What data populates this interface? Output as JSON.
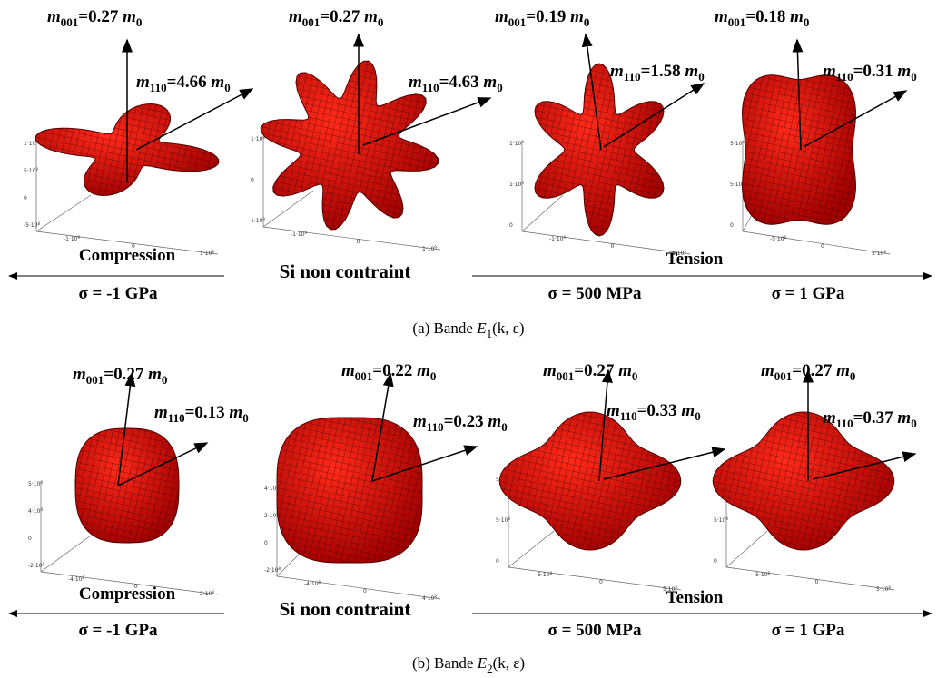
{
  "figure": {
    "rows": [
      {
        "panels": [
          {
            "m001": [
              "m",
              "001",
              "=0.27 ",
              "m",
              "0"
            ],
            "m110": [
              "m",
              "110",
              "=4.66 ",
              "m",
              "0"
            ],
            "axis_labels": [
              [
                "1·10",
                "9"
              ],
              [
                "5·10",
                "8"
              ],
              [
                "0",
                ""
              ],
              [
                "-5·10",
                "8"
              ],
              [
                "-1·10",
                "9"
              ],
              [
                "0",
                ""
              ],
              [
                "1·10",
                "9"
              ]
            ]
          },
          {
            "m001": [
              "m",
              "001",
              "=0.27 ",
              "m",
              "0"
            ],
            "m110": [
              "m",
              "110",
              "=4.63 ",
              "m",
              "0"
            ],
            "axis_labels": [
              [
                "1·10",
                "9"
              ],
              [
                "0",
                ""
              ],
              [
                "1·10",
                "9"
              ],
              [
                "-1·10",
                "9"
              ],
              [
                "0",
                ""
              ],
              [
                "1·10",
                "9"
              ]
            ]
          },
          {
            "m001": [
              "m",
              "001",
              "=0.19 ",
              "m",
              "0"
            ],
            "m110": [
              "m",
              "110",
              "=1.58 ",
              "m",
              "0"
            ],
            "axis_labels": [
              [
                "1·10",
                "9"
              ],
              [
                "1·10",
                "9"
              ],
              [
                "0",
                ""
              ],
              [
                "-1·10",
                "9"
              ],
              [
                "0",
                ""
              ],
              [
                "1·10",
                "9"
              ]
            ]
          },
          {
            "m001": [
              "m",
              "001",
              "=0.18 ",
              "m",
              "0"
            ],
            "m110": [
              "m",
              "110",
              "=0.31 ",
              "m",
              "0"
            ],
            "axis_labels": [
              [
                "5·10",
                "8"
              ],
              [
                "5·10",
                "8"
              ],
              [
                "0",
                ""
              ],
              [
                "-5·10",
                "8"
              ],
              [
                "0",
                ""
              ],
              [
                "5·10",
                "8"
              ]
            ]
          }
        ],
        "compression": "Compression",
        "unstrained": "Si non contraint",
        "tension": "Tension",
        "stresses": [
          "σ = -1 GPa",
          "σ = 500 MPa",
          "σ = 1 GPa"
        ],
        "caption": [
          "(a) Bande ",
          "E",
          "1",
          "(k, ε)"
        ]
      },
      {
        "panels": [
          {
            "m001": [
              "m",
              "001",
              "=0.27 ",
              "m",
              "0"
            ],
            "m110": [
              "m",
              "110",
              "=0.13 ",
              "m",
              "0"
            ],
            "axis_labels": [
              [
                "5·10",
                "8"
              ],
              [
                "4·10",
                "8"
              ],
              [
                "0",
                ""
              ],
              [
                "-2·10",
                "8"
              ],
              [
                "-4·10",
                "8"
              ],
              [
                "0",
                ""
              ],
              [
                "2·10",
                "8"
              ]
            ]
          },
          {
            "m001": [
              "m",
              "001",
              "=0.22 ",
              "m",
              "0"
            ],
            "m110": [
              "m",
              "110",
              "=0.23 ",
              "m",
              "0"
            ],
            "axis_labels": [
              [
                "4·10",
                "8"
              ],
              [
                "2·10",
                "8"
              ],
              [
                "0",
                ""
              ],
              [
                "-2·10",
                "8"
              ],
              [
                "-4·10",
                "8"
              ],
              [
                "0",
                ""
              ],
              [
                "4·10",
                "8"
              ]
            ]
          },
          {
            "m001": [
              "m",
              "001",
              "=0.27 ",
              "m",
              "0"
            ],
            "m110": [
              "m",
              "110",
              "=0.33 ",
              "m",
              "0"
            ],
            "axis_labels": [
              [
                "5·10",
                "8"
              ],
              [
                "5·10",
                "8"
              ],
              [
                "0",
                ""
              ],
              [
                "-5·10",
                "8"
              ],
              [
                "0",
                ""
              ],
              [
                "5·10",
                "8"
              ]
            ]
          },
          {
            "m001": [
              "m",
              "001",
              "=0.27 ",
              "m",
              "0"
            ],
            "m110": [
              "m",
              "110",
              "=0.37 ",
              "m",
              "0"
            ],
            "axis_labels": [
              [
                "5·10",
                "8"
              ],
              [
                "5·10",
                "8"
              ],
              [
                "0",
                ""
              ],
              [
                "-5·10",
                "8"
              ],
              [
                "0",
                ""
              ],
              [
                "5·10",
                "8"
              ]
            ]
          }
        ],
        "compression": "Compression",
        "unstrained": "Si non contraint",
        "tension": "Tension",
        "stresses": [
          "σ = -1 GPa",
          "σ = 500 MPa",
          "σ = 1 GPa"
        ],
        "caption": [
          "(b) Bande ",
          "E",
          "2",
          "(k, ε)"
        ]
      }
    ]
  }
}
